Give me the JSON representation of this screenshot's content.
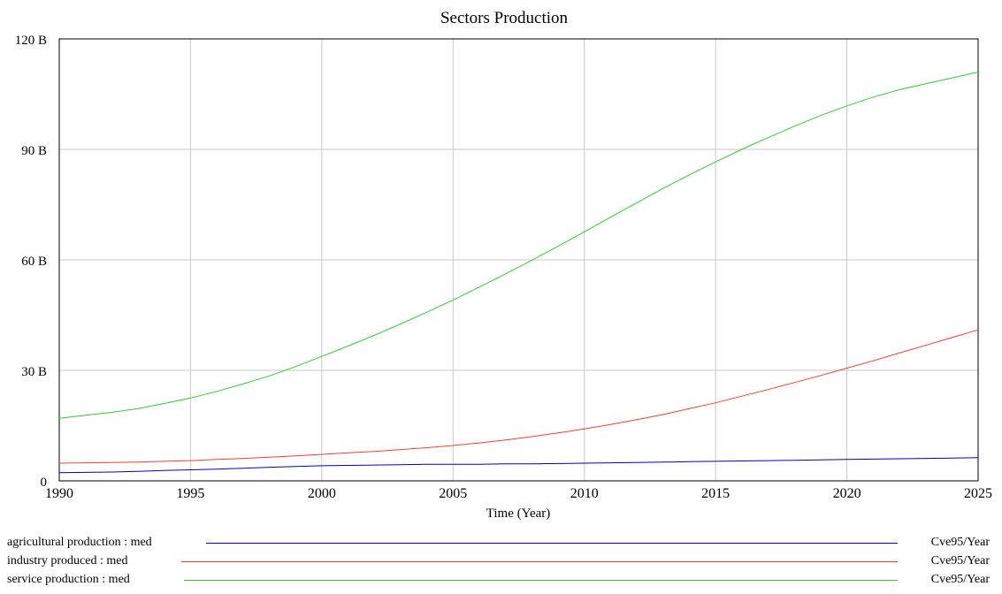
{
  "chart_data": {
    "type": "line",
    "title": "Sectors Production",
    "xlabel": "Time (Year)",
    "ylabel": "",
    "xlim": [
      1990,
      2025
    ],
    "ylim": [
      0,
      120
    ],
    "x_ticks": [
      1990,
      1995,
      2000,
      2005,
      2010,
      2015,
      2020,
      2025
    ],
    "x_tick_labels": [
      "1990",
      "1995",
      "2000",
      "2005",
      "2010",
      "2015",
      "2020",
      "2025"
    ],
    "y_ticks": [
      0,
      30,
      60,
      90,
      120
    ],
    "y_tick_labels": [
      "0",
      "30 B",
      "60 B",
      "90 B",
      "120 B"
    ],
    "y_unit": "B",
    "grid": true,
    "legend_placement": "bottom",
    "x": [
      1990,
      1991,
      1992,
      1993,
      1994,
      1995,
      1996,
      1997,
      1998,
      1999,
      2000,
      2001,
      2002,
      2003,
      2004,
      2005,
      2006,
      2007,
      2008,
      2009,
      2010,
      2011,
      2012,
      2013,
      2014,
      2015,
      2016,
      2017,
      2018,
      2019,
      2020,
      2021,
      2022,
      2023,
      2024,
      2025
    ],
    "series": [
      {
        "name": "agricultural production : med",
        "unit": "Cve95/Year",
        "color": "#0000cc",
        "values": [
          2.2,
          2.3,
          2.4,
          2.6,
          2.8,
          3.0,
          3.2,
          3.4,
          3.7,
          3.9,
          4.1,
          4.2,
          4.3,
          4.4,
          4.5,
          4.5,
          4.5,
          4.6,
          4.6,
          4.7,
          4.8,
          4.9,
          5.0,
          5.1,
          5.2,
          5.3,
          5.4,
          5.5,
          5.6,
          5.7,
          5.8,
          5.9,
          6.0,
          6.1,
          6.2,
          6.3
        ]
      },
      {
        "name": "industry produced : med",
        "unit": "Cve95/Year",
        "color": "#ff3b30",
        "values": [
          4.8,
          4.9,
          5.0,
          5.1,
          5.3,
          5.5,
          5.8,
          6.1,
          6.4,
          6.8,
          7.2,
          7.6,
          8.0,
          8.5,
          9.0,
          9.6,
          10.3,
          11.1,
          12.0,
          13.0,
          14.1,
          15.3,
          16.6,
          18.0,
          19.6,
          21.2,
          23.0,
          24.8,
          26.7,
          28.6,
          30.6,
          32.6,
          34.7,
          36.8,
          38.9,
          41.0
        ]
      },
      {
        "name": "service production : med",
        "unit": "Cve95/Year",
        "color": "#33cc33",
        "values": [
          17.0,
          17.8,
          18.6,
          19.6,
          21.0,
          22.5,
          24.3,
          26.3,
          28.5,
          31.0,
          33.8,
          36.6,
          39.5,
          42.6,
          45.8,
          49.1,
          52.6,
          56.2,
          59.9,
          63.7,
          67.6,
          71.6,
          75.5,
          79.4,
          83.1,
          86.6,
          90.0,
          93.2,
          96.3,
          99.2,
          101.8,
          104.2,
          106.2,
          107.8,
          109.4,
          111.0
        ]
      }
    ]
  }
}
